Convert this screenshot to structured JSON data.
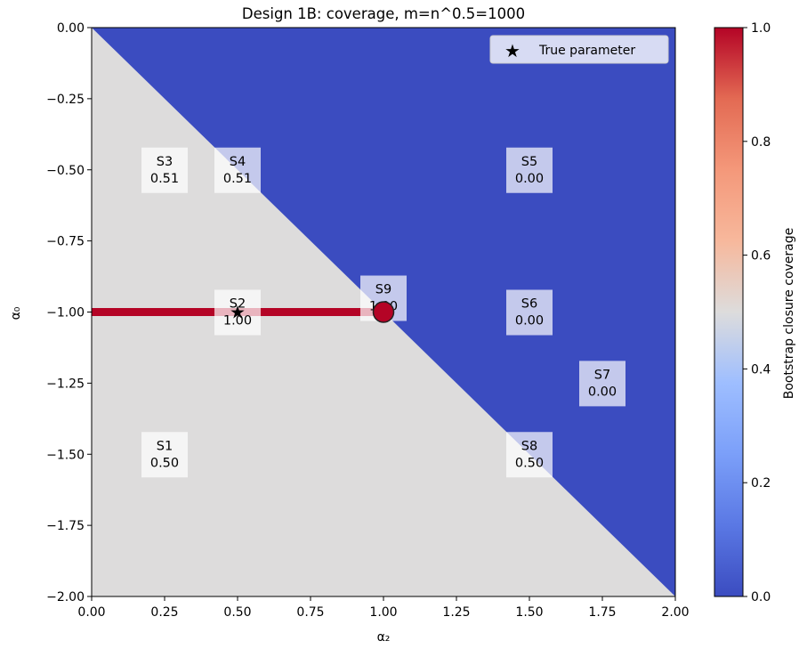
{
  "chart_data": {
    "type": "heatmap",
    "title": "Design 1B: coverage, m=n^0.5=1000",
    "xlabel": "α₂",
    "ylabel": "α₀",
    "xlim": [
      0,
      2
    ],
    "ylim": [
      -2,
      0
    ],
    "x_ticks": [
      "0.00",
      "0.25",
      "0.50",
      "0.75",
      "1.00",
      "1.25",
      "1.50",
      "1.75",
      "2.00"
    ],
    "y_ticks": [
      "0.00",
      "−0.25",
      "−0.50",
      "−0.75",
      "−1.00",
      "−1.25",
      "−1.50",
      "−1.75",
      "−2.00"
    ],
    "regions": [
      {
        "label": "region below α₀ = −α₂",
        "coverage": 0.5,
        "color": "#dddcdc"
      },
      {
        "label": "region above α₀ = −α₂",
        "coverage": 0.0,
        "color": "#3b4cc0"
      },
      {
        "label": "segment α₀ = −1, 0 ≤ α₂ ≤ 1",
        "x": [
          0,
          1
        ],
        "y": [
          -1,
          -1
        ],
        "coverage": 1.0,
        "color": "#b40426"
      },
      {
        "label": "point (1, −1)",
        "x": 1,
        "y": -1,
        "coverage": 1.0,
        "color": "#b40426"
      }
    ],
    "cells": [
      {
        "id": "S1",
        "x": 0.25,
        "y": -1.5,
        "value": "0.50"
      },
      {
        "id": "S2",
        "x": 0.5,
        "y": -1.0,
        "value": "1.00"
      },
      {
        "id": "S3",
        "x": 0.25,
        "y": -0.5,
        "value": "0.51"
      },
      {
        "id": "S4",
        "x": 0.5,
        "y": -0.5,
        "value": "0.51"
      },
      {
        "id": "S5",
        "x": 1.5,
        "y": -0.5,
        "value": "0.00"
      },
      {
        "id": "S6",
        "x": 1.5,
        "y": -1.0,
        "value": "0.00"
      },
      {
        "id": "S7",
        "x": 1.75,
        "y": -1.25,
        "value": "0.00"
      },
      {
        "id": "S8",
        "x": 1.5,
        "y": -1.5,
        "value": "0.50"
      },
      {
        "id": "S9",
        "x": 1.0,
        "y": -0.95,
        "value": "1.00"
      }
    ],
    "true_parameter": {
      "x": 0.5,
      "y": -1.0
    },
    "legend": {
      "entries": [
        "True parameter"
      ],
      "position": "top-right"
    },
    "colorbar": {
      "label": "Bootstrap closure coverage",
      "range": [
        0,
        1
      ],
      "ticks": [
        "0.0",
        "0.2",
        "0.4",
        "0.6",
        "0.8",
        "1.0"
      ],
      "colormap": "coolwarm"
    },
    "grid": false
  }
}
